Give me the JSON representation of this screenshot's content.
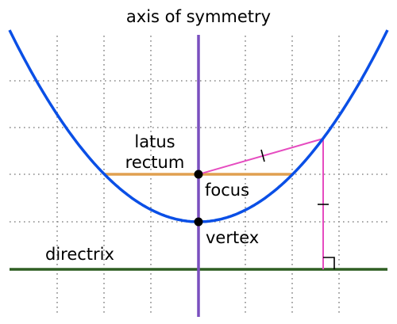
{
  "labels": {
    "axis_of_symmetry": "axis of symmetry",
    "latus_rectum_line1": "latus",
    "latus_rectum_line2": "rectum",
    "focus": "focus",
    "vertex": "vertex",
    "directrix": "directrix"
  },
  "colors": {
    "parabola": "#0a4fe6",
    "axis": "#7a4fbf",
    "directrix": "#2f5e23",
    "latus_rectum": "#e0a050",
    "distance_segments": "#e64cc0",
    "grid": "#8a8a8a",
    "points": "#000000"
  }
}
